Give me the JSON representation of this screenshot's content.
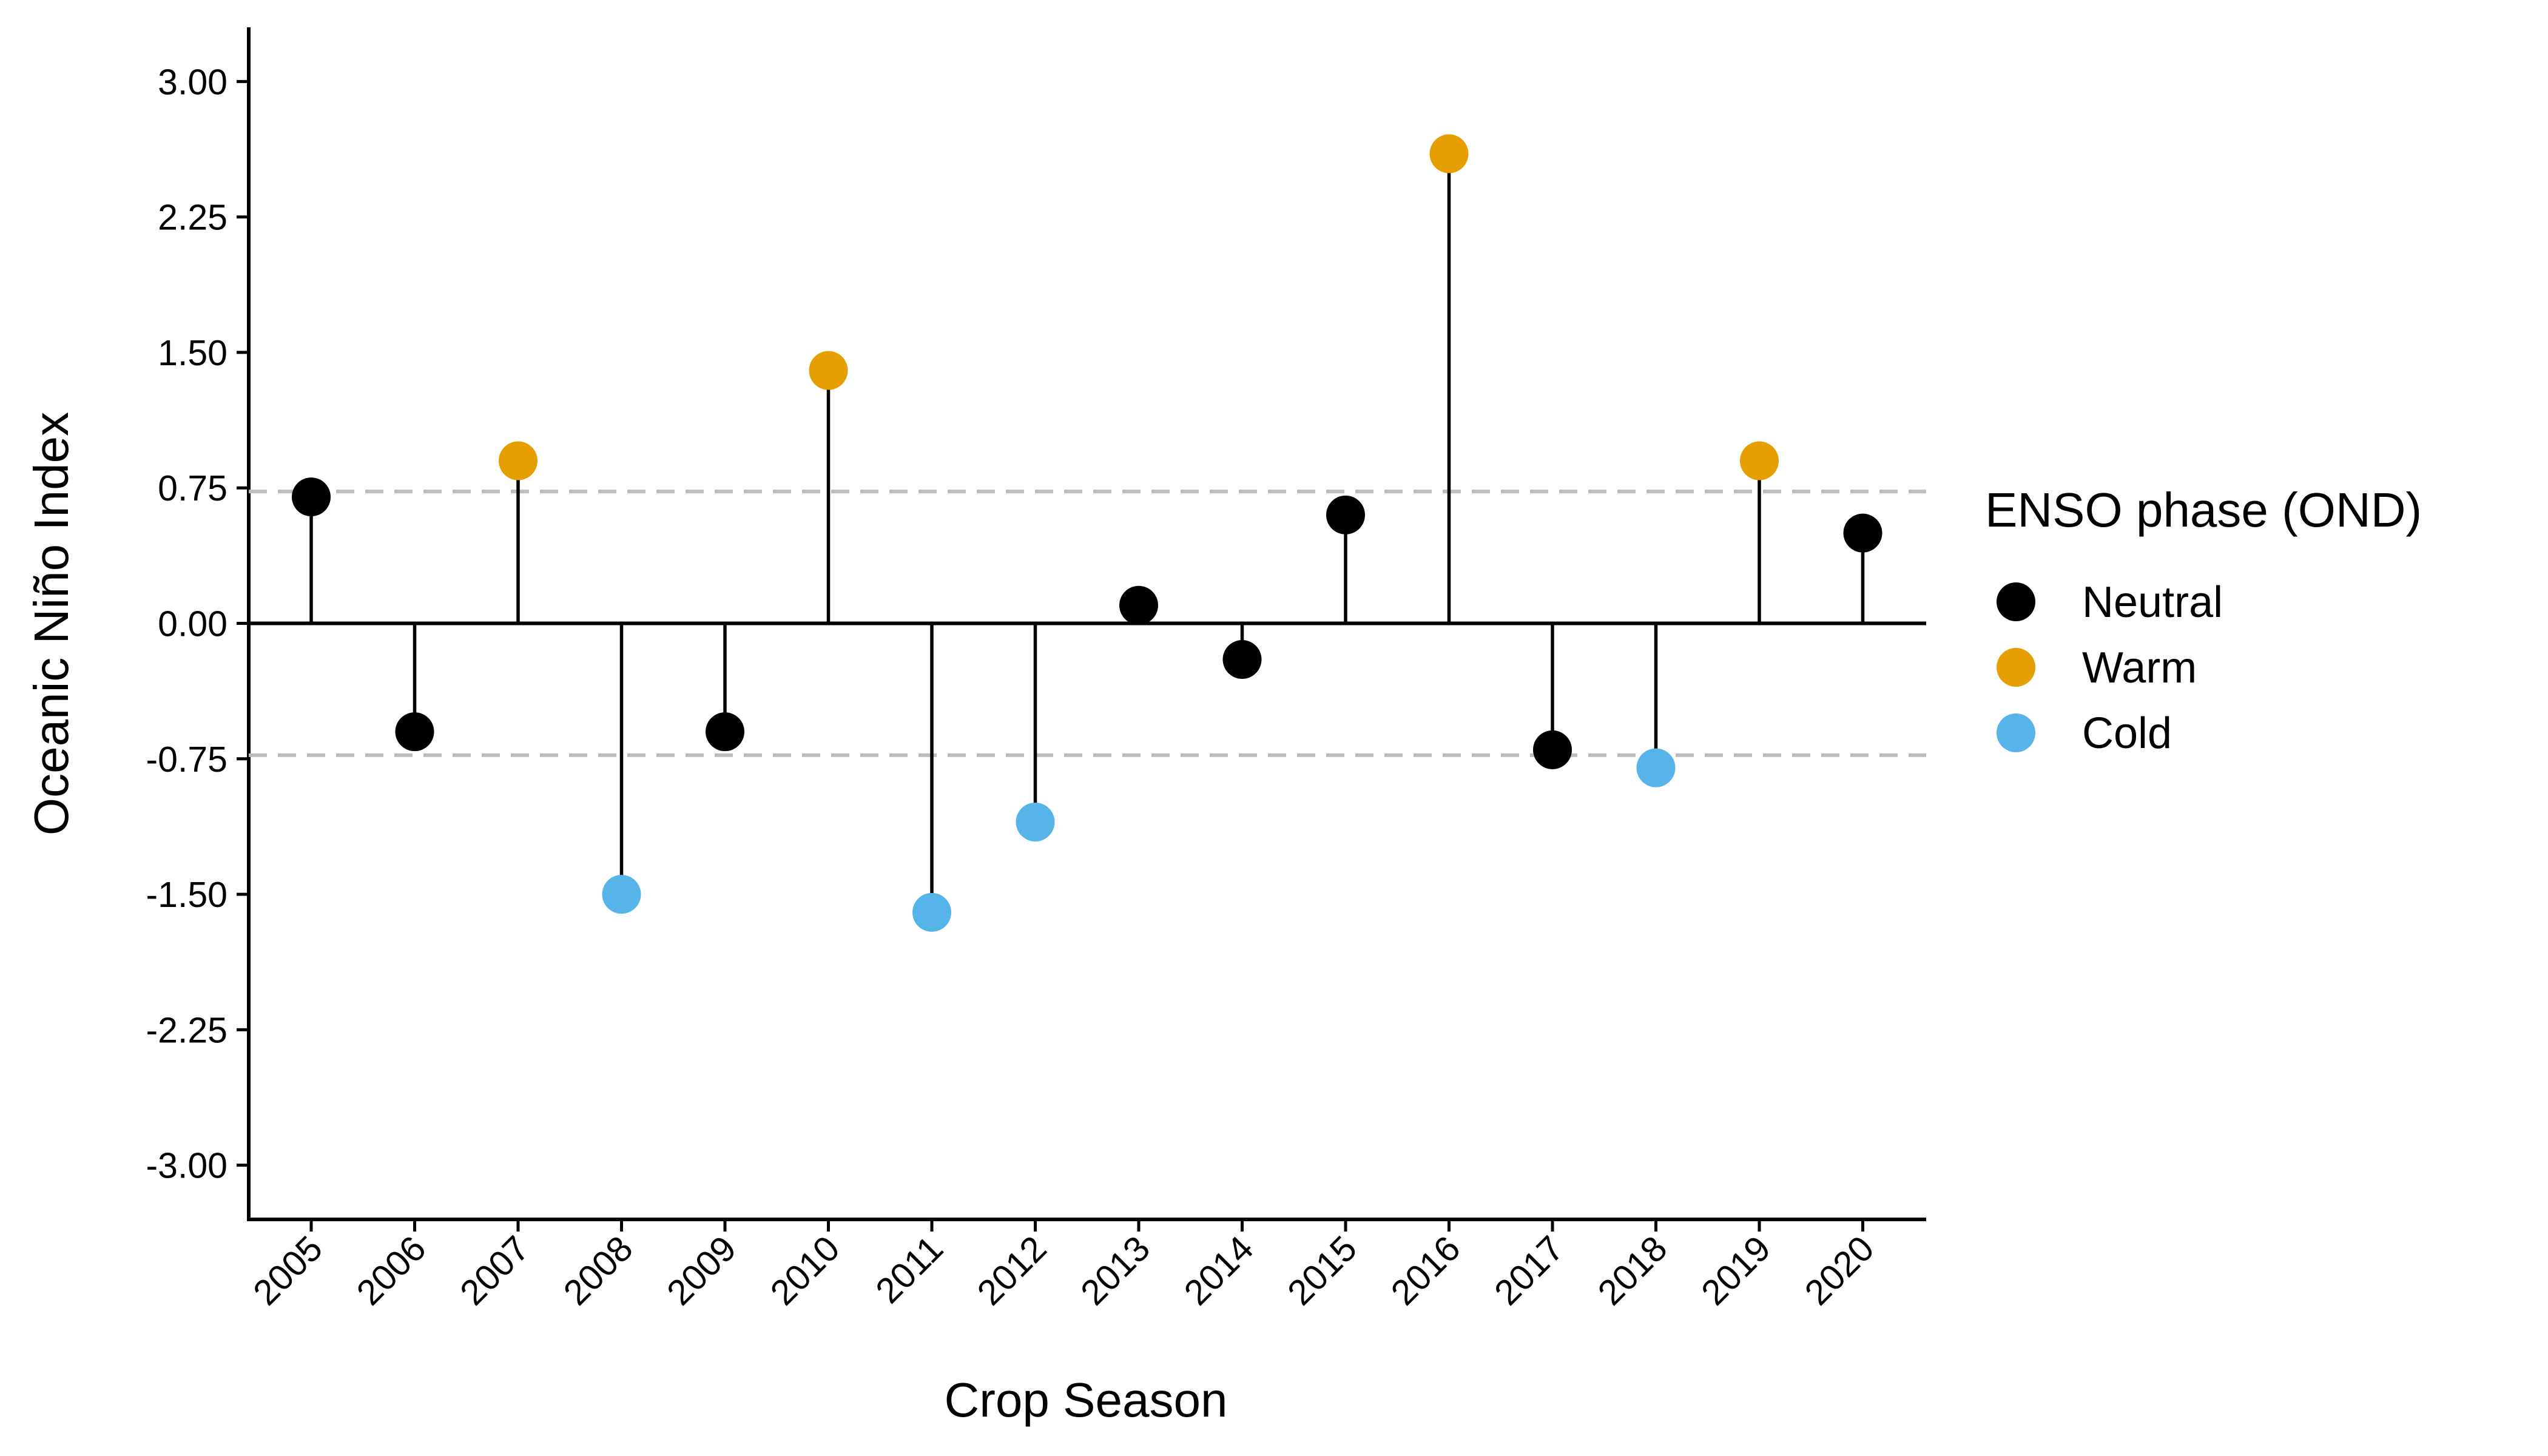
{
  "chart_data": {
    "type": "lollipop",
    "x": [
      "2005",
      "2006",
      "2007",
      "2008",
      "2009",
      "2010",
      "2011",
      "2012",
      "2013",
      "2014",
      "2015",
      "2016",
      "2017",
      "2018",
      "2019",
      "2020"
    ],
    "values": [
      0.7,
      -0.6,
      0.9,
      -1.5,
      -0.6,
      1.4,
      -1.6,
      -1.1,
      0.1,
      -0.2,
      0.6,
      2.6,
      -0.7,
      -0.8,
      0.9,
      0.5
    ],
    "phase": [
      "Neutral",
      "Neutral",
      "Warm",
      "Cold",
      "Neutral",
      "Warm",
      "Cold",
      "Cold",
      "Neutral",
      "Neutral",
      "Neutral",
      "Warm",
      "Neutral",
      "Cold",
      "Warm",
      "Neutral"
    ],
    "xlabel": "Crop Season",
    "ylabel": "Oceanic Niño Index",
    "ylim": [
      -3.3,
      3.3
    ],
    "yticks": [
      "3.00",
      "2.25",
      "1.50",
      "0.75",
      "0.00",
      "-0.75",
      "-1.50",
      "-2.25",
      "-3.00"
    ],
    "ytick_values": [
      3.0,
      2.25,
      1.5,
      0.75,
      0.0,
      -0.75,
      -1.5,
      -2.25,
      -3.0
    ],
    "reference_lines": [
      0.73,
      -0.73
    ],
    "legend": {
      "title": "ENSO phase (OND)",
      "position": "right",
      "entries": [
        {
          "label": "Neutral",
          "color": "#000000"
        },
        {
          "label": "Warm",
          "color": "#E69F00"
        },
        {
          "label": "Cold",
          "color": "#56B4E9"
        }
      ]
    },
    "grid": false
  }
}
